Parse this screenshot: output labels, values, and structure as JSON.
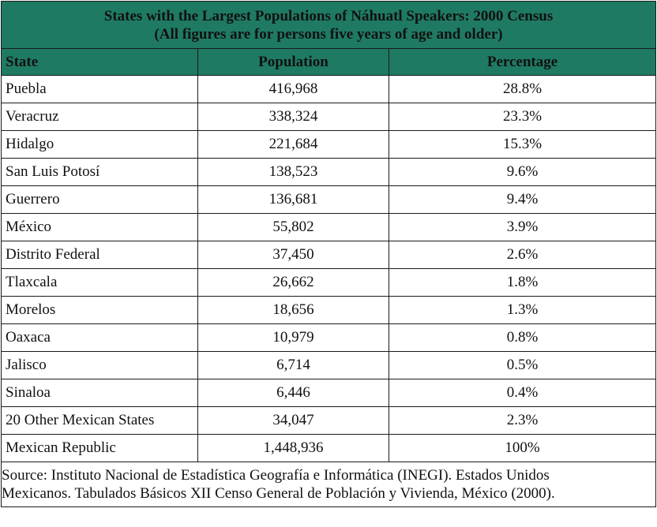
{
  "table": {
    "title_line1": "States with the Largest Populations of Náhuatl Speakers: 2000 Census",
    "title_line2": "(All figures are for persons five years of age and older)",
    "colors": {
      "header_bg": "#1f7a63",
      "header_text": "#ffffff",
      "border": "#1a1a1a"
    },
    "columns": {
      "state": "State",
      "population": "Population",
      "percentage": "Percentage"
    },
    "rows": [
      {
        "state": "Puebla",
        "population": "416,968",
        "percentage": "28.8%"
      },
      {
        "state": "Veracruz",
        "population": "338,324",
        "percentage": "23.3%"
      },
      {
        "state": "Hidalgo",
        "population": "221,684",
        "percentage": "15.3%"
      },
      {
        "state": "San Luis Potosí",
        "population": "138,523",
        "percentage": "9.6%"
      },
      {
        "state": "Guerrero",
        "population": "136,681",
        "percentage": "9.4%"
      },
      {
        "state": "México",
        "population": "55,802",
        "percentage": "3.9%"
      },
      {
        "state": "Distrito Federal",
        "population": "37,450",
        "percentage": "2.6%"
      },
      {
        "state": "Tlaxcala",
        "population": "26,662",
        "percentage": "1.8%"
      },
      {
        "state": "Morelos",
        "population": "18,656",
        "percentage": "1.3%"
      },
      {
        "state": "Oaxaca",
        "population": "10,979",
        "percentage": "0.8%"
      },
      {
        "state": "Jalisco",
        "population": "6,714",
        "percentage": "0.5%"
      },
      {
        "state": "Sinaloa",
        "population": "6,446",
        "percentage": "0.4%"
      },
      {
        "state": "20 Other Mexican States",
        "population": "34,047",
        "percentage": "2.3%"
      },
      {
        "state": "Mexican Republic",
        "population": "1,448,936",
        "percentage": "100%"
      }
    ],
    "source_line1": "Source: Instituto Nacional de Estadística Geografía e Informática (INEGI). Estados Unidos",
    "source_line2": "Mexicanos. Tabulados Básicos XII Censo General de Población y Vivienda, México (2000)."
  }
}
